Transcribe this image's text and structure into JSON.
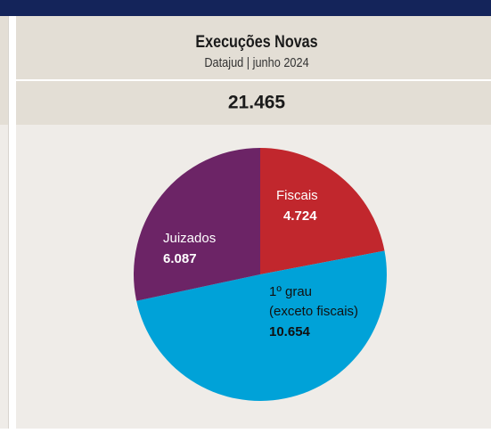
{
  "chart_data": {
    "type": "pie",
    "title": "Execuções Novas",
    "subtitle": "Datajud | junho 2024",
    "total": "21.465",
    "categories": [
      "Fiscais",
      "1º grau (exceto fiscais)",
      "Juizados"
    ],
    "values": [
      4724,
      10654,
      6087
    ],
    "value_labels": [
      "4.724",
      "10.654",
      "6.087"
    ],
    "colors": [
      "#c1272d",
      "#00a2d8",
      "#6c2466"
    ]
  }
}
